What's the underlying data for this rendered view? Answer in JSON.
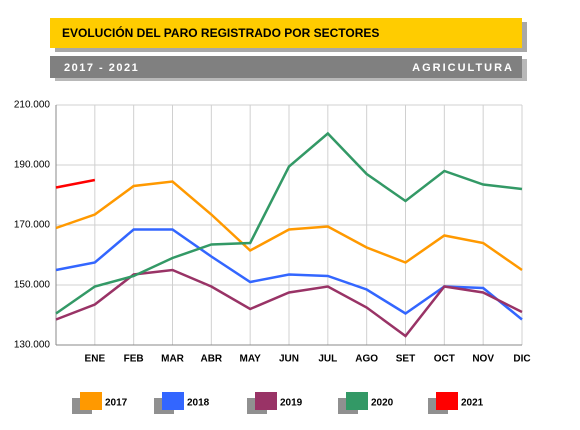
{
  "chart_data": {
    "type": "line",
    "title": "EVOLUCIÓN DEL PARO REGISTRADO POR SECTORES",
    "subtitle": "2017 - 2021",
    "sector": "AGRICULTURA",
    "categories": [
      null,
      "ENE",
      "FEB",
      "MAR",
      "ABR",
      "MAY",
      "JUN",
      "JUL",
      "AGO",
      "SET",
      "OCT",
      "NOV",
      "DIC"
    ],
    "series": [
      {
        "name": "2017",
        "color": "#ff9900",
        "values": [
          169000,
          173500,
          183000,
          184500,
          173500,
          161500,
          168500,
          169500,
          162500,
          157500,
          166500,
          164000,
          155000
        ]
      },
      {
        "name": "2018",
        "color": "#3366ff",
        "values": [
          155000,
          157500,
          168500,
          168500,
          159500,
          151000,
          153500,
          153000,
          148500,
          140500,
          149500,
          149000,
          138500
        ]
      },
      {
        "name": "2019",
        "color": "#993366",
        "values": [
          138500,
          143500,
          153500,
          155000,
          149500,
          142000,
          147500,
          149500,
          142500,
          133000,
          149500,
          147500,
          141000
        ]
      },
      {
        "name": "2020",
        "color": "#339966",
        "values": [
          140500,
          149500,
          153000,
          159000,
          163500,
          164000,
          189500,
          200500,
          187000,
          178000,
          188000,
          183500,
          182000
        ]
      },
      {
        "name": "2021",
        "color": "#ff0000",
        "values": [
          182500,
          185000,
          null,
          null,
          null,
          null,
          null,
          null,
          null,
          null,
          null,
          null,
          null
        ]
      }
    ],
    "ylim": [
      130000,
      210000
    ],
    "yticks": [
      {
        "value": 130000,
        "label": "130.000"
      },
      {
        "value": 150000,
        "label": "150.000"
      },
      {
        "value": 170000,
        "label": "170.000"
      },
      {
        "value": 190000,
        "label": "190.000"
      },
      {
        "value": 210000,
        "label": "210.000"
      }
    ],
    "grid": true
  }
}
